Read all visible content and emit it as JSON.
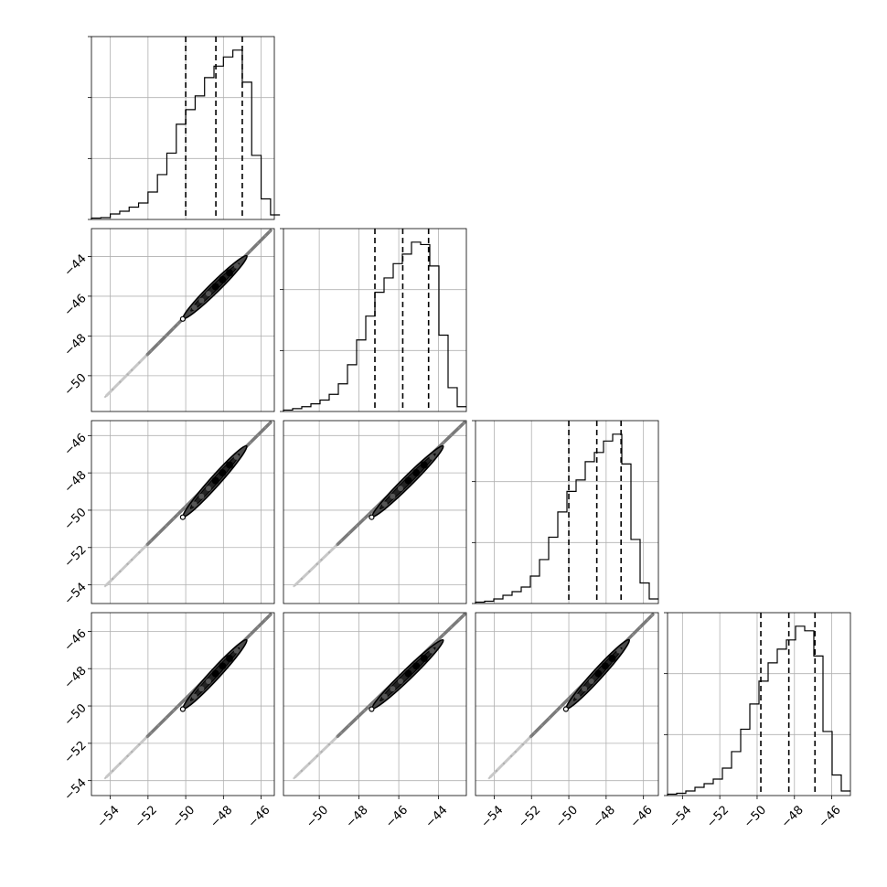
{
  "chart_data": {
    "type": "corner",
    "n_params": 4,
    "grid": true,
    "colors": {
      "line": "#000000",
      "grid": "#b0b0b0",
      "scatter": "#888888"
    },
    "params": [
      {
        "range": [
          -55,
          -45.3
        ],
        "ticks": [
          -54,
          -52,
          -50,
          -48,
          -46
        ],
        "quantiles": [
          -50.0,
          -48.4,
          -47.0
        ],
        "hist_x": [
          -55,
          -54.5,
          -54,
          -53.5,
          -53,
          -52.5,
          -52,
          -51.5,
          -51,
          -50.5,
          -50,
          -49.5,
          -49,
          -48.5,
          -48,
          -47.5,
          -47,
          -46.5,
          -46,
          -45.5
        ],
        "hist_counts": [
          0.3,
          0.4,
          1.2,
          1.8,
          2.7,
          3.6,
          6.0,
          9.8,
          14.5,
          20.8,
          24.0,
          27.0,
          31.0,
          33.5,
          35.5,
          37.0,
          30.0,
          14.0,
          4.5,
          1.0
        ]
      },
      {
        "range": [
          -51.8,
          -42.6
        ],
        "ticks": [
          -50,
          -48,
          -46,
          -44
        ],
        "quantiles": [
          -47.2,
          -45.8,
          -44.5
        ],
        "hist_x": [
          -51.8,
          -51.34,
          -50.88,
          -50.42,
          -49.96,
          -49.5,
          -49.04,
          -48.58,
          -48.12,
          -47.66,
          -47.2,
          -46.74,
          -46.28,
          -45.82,
          -45.36,
          -44.9,
          -44.44,
          -43.98,
          -43.52,
          -43.06
        ],
        "hist_counts": [
          0.3,
          0.6,
          1.0,
          1.6,
          2.4,
          3.6,
          5.8,
          9.8,
          15.0,
          20.0,
          25.0,
          28.0,
          31.0,
          33.0,
          35.5,
          35.0,
          30.5,
          16.0,
          5.0,
          1.0
        ]
      },
      {
        "range": [
          -55,
          -45.2
        ],
        "ticks": [
          -54,
          -52,
          -50,
          -48,
          -46
        ],
        "quantiles": [
          -50.0,
          -48.5,
          -47.2
        ],
        "hist_x": [
          -55,
          -54.51,
          -54.02,
          -53.53,
          -53.04,
          -52.55,
          -52.06,
          -51.57,
          -51.08,
          -50.59,
          -50.1,
          -49.61,
          -49.12,
          -48.63,
          -48.14,
          -47.65,
          -47.16,
          -46.67,
          -46.18,
          -45.69
        ],
        "hist_counts": [
          0.3,
          0.5,
          1.0,
          1.8,
          2.6,
          3.6,
          6.0,
          9.6,
          14.5,
          20.0,
          24.5,
          27.0,
          31.0,
          33.0,
          35.5,
          37.0,
          30.5,
          14.0,
          4.5,
          1.0
        ]
      },
      {
        "range": [
          -54.8,
          -45.0
        ],
        "ticks": [
          -54,
          -52,
          -50,
          -48,
          -46
        ],
        "quantiles": [
          -49.8,
          -48.3,
          -46.9
        ],
        "hist_x": [
          -54.8,
          -54.31,
          -53.82,
          -53.33,
          -52.84,
          -52.35,
          -51.86,
          -51.37,
          -50.88,
          -50.39,
          -49.9,
          -49.41,
          -48.92,
          -48.43,
          -47.94,
          -47.45,
          -46.96,
          -46.47,
          -45.98,
          -45.49
        ],
        "hist_counts": [
          0.3,
          0.5,
          1.0,
          1.8,
          2.6,
          3.6,
          6.0,
          9.6,
          14.5,
          20.0,
          25.0,
          29.0,
          32.0,
          34.0,
          37.0,
          36.0,
          30.5,
          14.0,
          4.5,
          1.0
        ]
      }
    ],
    "scatter_panels": [
      {
        "row": 1,
        "col": 0,
        "start": [
          -54.2,
          -51.0
        ],
        "end": [
          -45.5,
          -42.7
        ],
        "contour": [
          -50.0,
          -47.0,
          -46.9,
          -44.1
        ]
      },
      {
        "row": 2,
        "col": 0,
        "start": [
          -54.2,
          -54.0
        ],
        "end": [
          -45.5,
          -45.3
        ],
        "contour": [
          -50.0,
          -50.2,
          -46.9,
          -46.7
        ]
      },
      {
        "row": 2,
        "col": 1,
        "start": [
          -51.2,
          -54.0
        ],
        "end": [
          -42.7,
          -45.3
        ],
        "contour": [
          -47.2,
          -50.2,
          -43.9,
          -46.7
        ]
      },
      {
        "row": 3,
        "col": 0,
        "start": [
          -54.2,
          -53.8
        ],
        "end": [
          -45.5,
          -45.1
        ],
        "contour": [
          -50.0,
          -50.0,
          -46.9,
          -46.6
        ]
      },
      {
        "row": 3,
        "col": 1,
        "start": [
          -51.2,
          -53.8
        ],
        "end": [
          -42.7,
          -45.1
        ],
        "contour": [
          -47.2,
          -50.0,
          -43.9,
          -46.6
        ]
      },
      {
        "row": 3,
        "col": 2,
        "start": [
          -54.2,
          -53.8
        ],
        "end": [
          -45.5,
          -45.1
        ],
        "contour": [
          -50.0,
          -50.0,
          -46.9,
          -46.6
        ]
      }
    ]
  }
}
